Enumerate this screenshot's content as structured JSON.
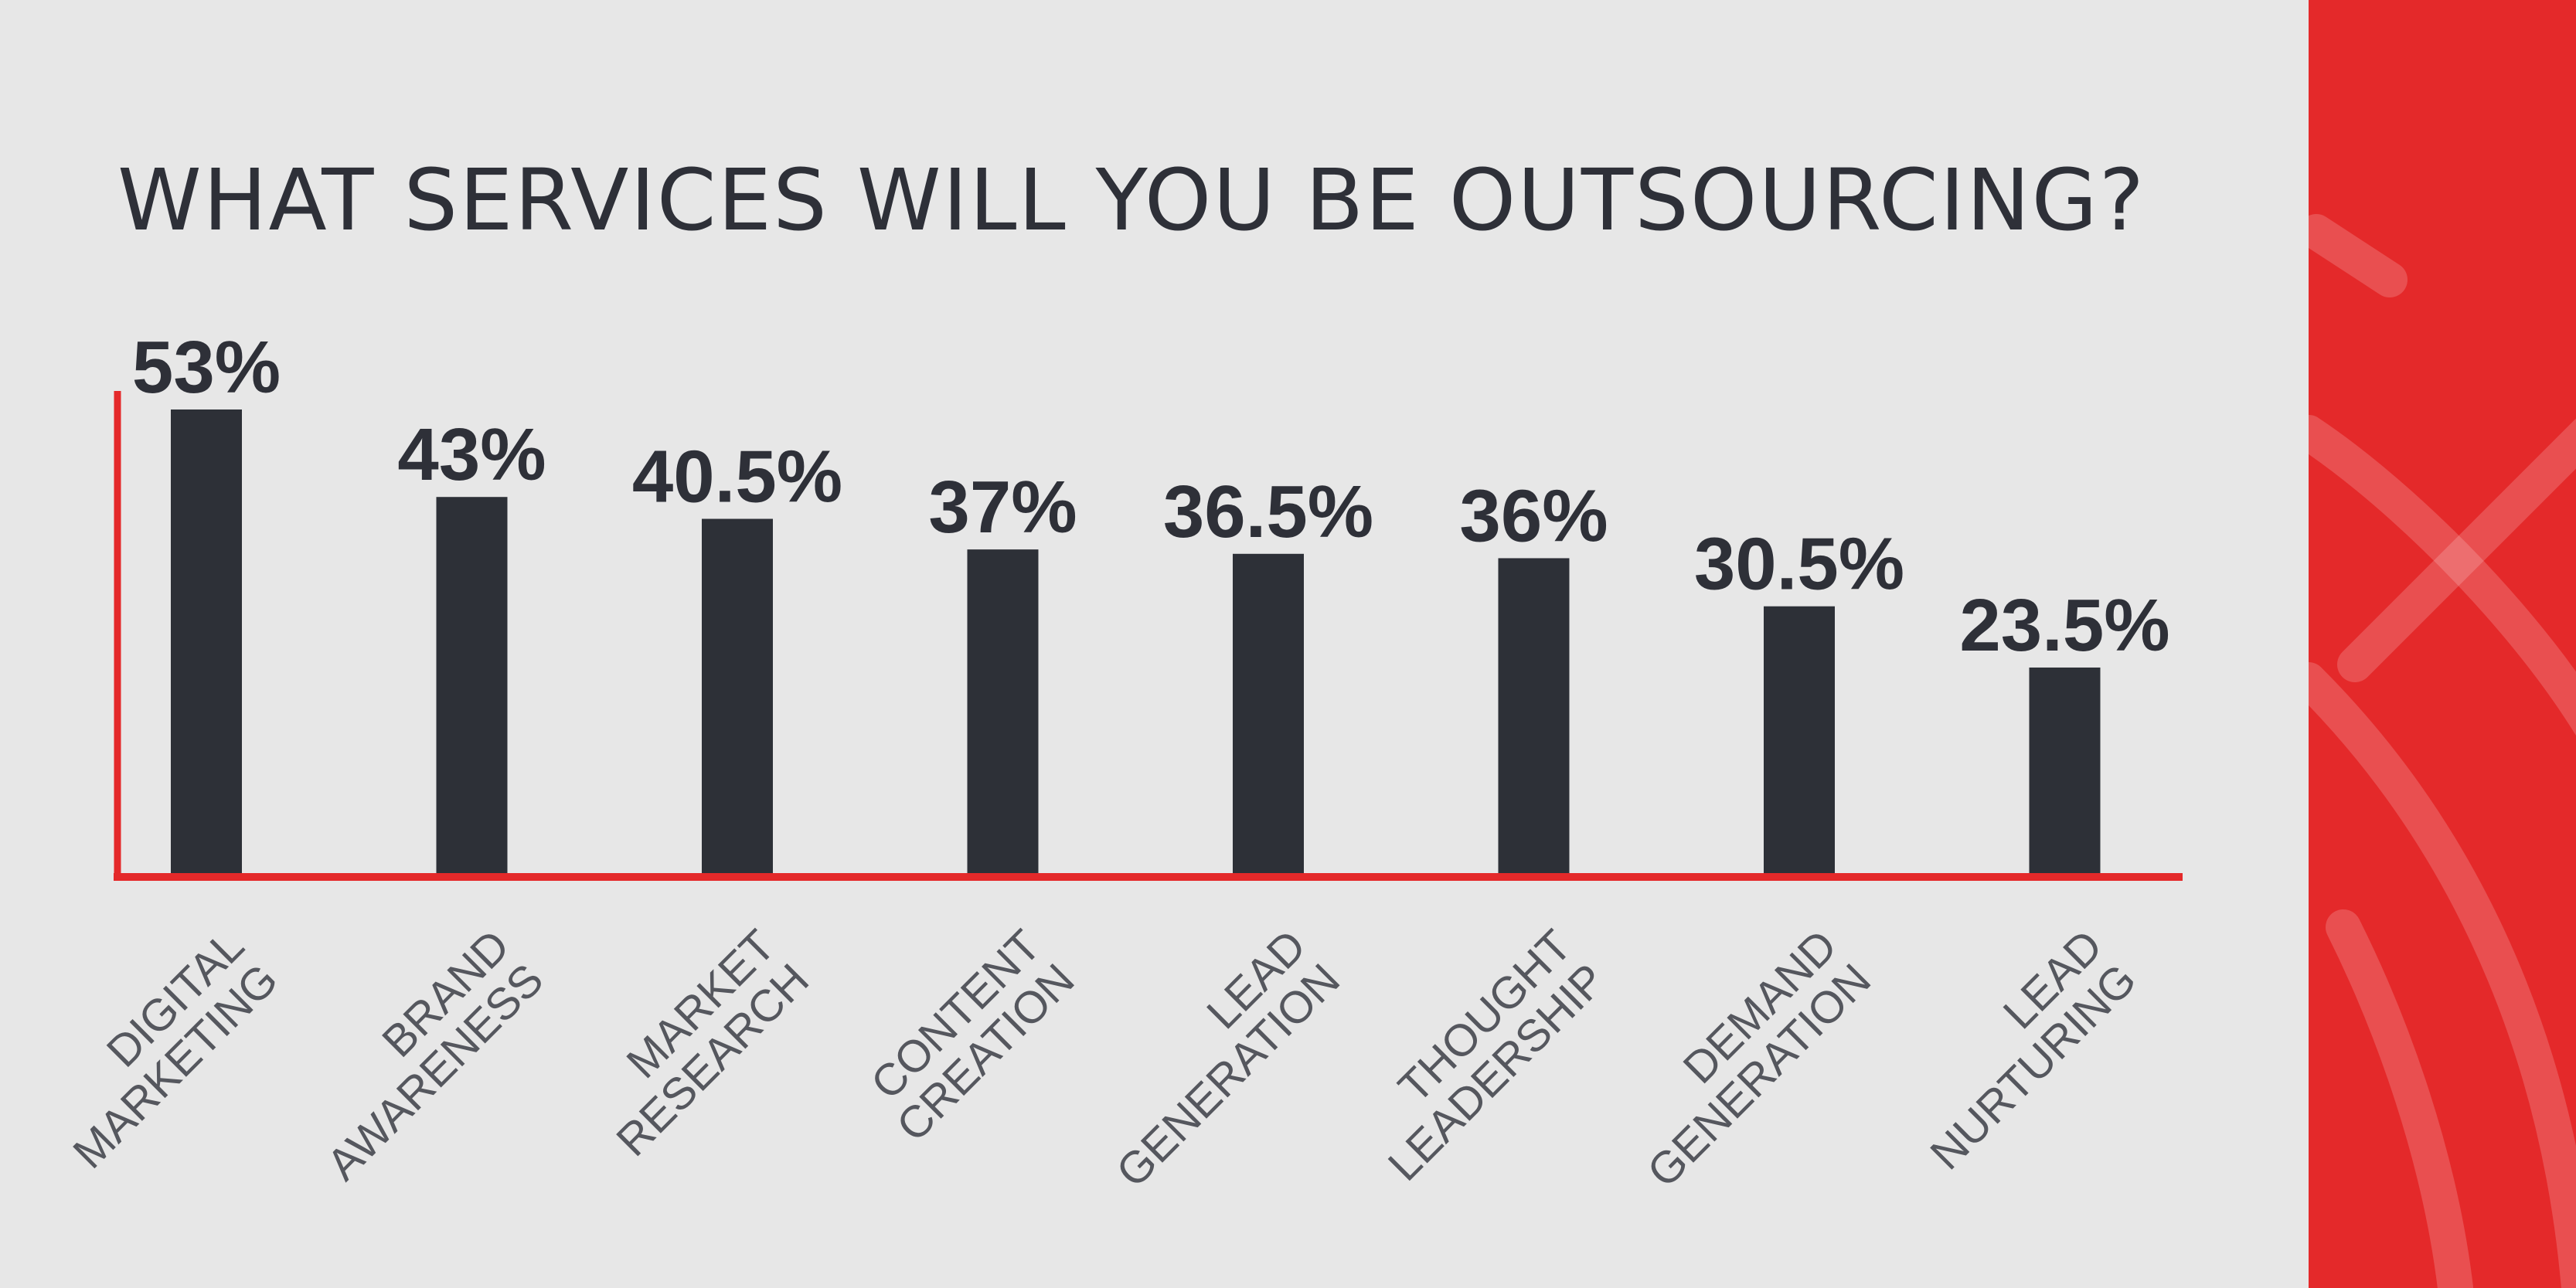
{
  "title": "WHAT SERVICES WILL YOU BE OUTSOURCING?",
  "colors": {
    "bar": "#2d3037",
    "axis": "#e4292a",
    "panel": "#e4292a",
    "background": "#e7e7e7",
    "text": "#2e3038",
    "label": "#55575e"
  },
  "chart_data": {
    "type": "bar",
    "title": "WHAT SERVICES WILL YOU BE OUTSOURCING?",
    "categories": [
      [
        "DIGITAL",
        "MARKETING"
      ],
      [
        "BRAND",
        "AWARENESS"
      ],
      [
        "MARKET",
        "RESEARCH"
      ],
      [
        "CONTENT",
        "CREATION"
      ],
      [
        "LEAD",
        "GENERATION"
      ],
      [
        "THOUGHT",
        "LEADERSHIP"
      ],
      [
        "DEMAND",
        "GENERATION"
      ],
      [
        "LEAD",
        "NURTURING"
      ]
    ],
    "values": [
      53,
      43,
      40.5,
      37,
      36.5,
      36,
      30.5,
      23.5
    ],
    "value_labels": [
      "53%",
      "43%",
      "40.5%",
      "37%",
      "36.5%",
      "36%",
      "30.5%",
      "23.5%"
    ],
    "ylim": [
      0,
      55.5
    ],
    "grid": false,
    "legend": "none"
  }
}
